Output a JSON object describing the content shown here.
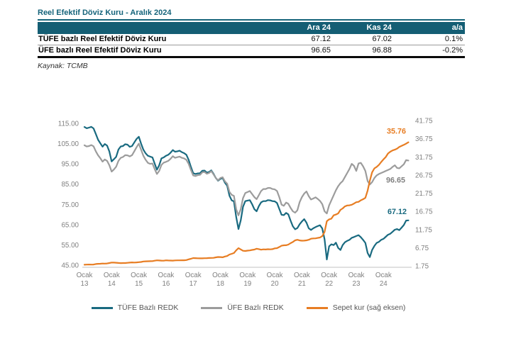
{
  "report": {
    "title": "Reel Efektif Döviz Kuru - Aralık 2024",
    "source": "Kaynak: TCMB"
  },
  "table": {
    "headers": [
      "",
      "Ara 24",
      "Kas 24",
      "a/a"
    ],
    "rows": [
      {
        "label": "TÜFE bazlı Reel Efektif Döviz Kuru",
        "ara24": "67.12",
        "kas24": "67.02",
        "aa": "0.1%"
      },
      {
        "label": "ÜFE bazlı Reel Efektif Döviz Kuru",
        "ara24": "96.65",
        "kas24": "96.88",
        "aa": "-0.2%"
      }
    ]
  },
  "colors": {
    "teal": "#196a80",
    "gray": "#9c9c9c",
    "orange": "#e77d23",
    "header_bg": "#145e74",
    "axis_text": "#7f7f7f",
    "axis_line": "#c0c0c0",
    "legend_text": "#555555"
  },
  "chart_data": {
    "type": "line",
    "title": "",
    "xlabel": "",
    "ylabel": "",
    "x_frequency": "monthly",
    "x_start": "Ocak 2013",
    "x_end": "Aralık 2024",
    "x_ticks": [
      {
        "month": "Ocak",
        "year": "13"
      },
      {
        "month": "Ocak",
        "year": "14"
      },
      {
        "month": "Ocak",
        "year": "15"
      },
      {
        "month": "Ocak",
        "year": "16"
      },
      {
        "month": "Ocak",
        "year": "17"
      },
      {
        "month": "Ocak",
        "year": "18"
      },
      {
        "month": "Ocak",
        "year": "19"
      },
      {
        "month": "Ocak",
        "year": "20"
      },
      {
        "month": "Ocak",
        "year": "21"
      },
      {
        "month": "Ocak",
        "year": "22"
      },
      {
        "month": "Ocak",
        "year": "23"
      },
      {
        "month": "Ocak",
        "year": "24"
      }
    ],
    "left_axis": {
      "min": 45,
      "max": 115,
      "ticks": [
        "115.00",
        "105.00",
        "95.00",
        "85.00",
        "75.00",
        "65.00",
        "55.00",
        "45.00"
      ]
    },
    "right_axis": {
      "min": 1.75,
      "max": 41.75,
      "ticks": [
        "41.75",
        "36.75",
        "31.75",
        "26.75",
        "21.75",
        "16.75",
        "11.75",
        "6.75",
        "1.75"
      ]
    },
    "grid": false,
    "legend_position": "bottom",
    "legend": [
      {
        "label": "TÜFE Bazlı REDK",
        "color": "#196a80"
      },
      {
        "label": "ÜFE Bazlı REDK",
        "color": "#9c9c9c"
      },
      {
        "label": "Sepet kur (sağ eksen)",
        "color": "#e77d23"
      }
    ],
    "end_labels": [
      {
        "series": "tufe",
        "text": "67.12",
        "color": "#196a80"
      },
      {
        "series": "ufe",
        "text": "96.65",
        "color": "#808080"
      },
      {
        "series": "sepet",
        "text": "35.76",
        "color": "#e77d23"
      }
    ],
    "series": [
      {
        "name": "TÜFE Bazlı REDK",
        "id": "tufe",
        "axis": "left",
        "color": "#196a80",
        "values": [
          113.2,
          112.6,
          112.9,
          113.3,
          112.5,
          109.8,
          106.9,
          105.2,
          103.5,
          104.8,
          104.0,
          101.1,
          96.2,
          97.3,
          98.5,
          102.1,
          103.6,
          103.8,
          104.7,
          104.5,
          103.4,
          103.8,
          105.6,
          107.3,
          108.4,
          105.0,
          102.0,
          100.2,
          99.0,
          98.6,
          98.2,
          95.2,
          92.1,
          94.3,
          97.7,
          98.2,
          99.0,
          99.5,
          100.5,
          101.8,
          101.0,
          101.2,
          101.5,
          100.8,
          100.3,
          99.5,
          97.0,
          93.5,
          90.4,
          90.0,
          90.3,
          90.4,
          91.6,
          91.7,
          90.7,
          91.0,
          91.8,
          90.1,
          88.0,
          86.7,
          87.6,
          88.0,
          85.7,
          84.2,
          79.3,
          77.0,
          76.5,
          68.8,
          62.8,
          67.1,
          73.8,
          76.6,
          76.9,
          77.1,
          75.1,
          72.6,
          71.6,
          74.2,
          76.0,
          76.6,
          76.6,
          77.1,
          77.0,
          76.6,
          76.5,
          75.7,
          72.8,
          69.9,
          69.7,
          70.8,
          70.1,
          67.0,
          64.2,
          62.7,
          63.3,
          65.2,
          66.6,
          67.7,
          66.0,
          63.2,
          62.4,
          63.2,
          63.8,
          64.3,
          64.7,
          63.1,
          57.8,
          47.8,
          54.3,
          55.3,
          54.9,
          56.1,
          53.5,
          52.5,
          54.9,
          56.3,
          57.0,
          57.5,
          58.5,
          58.9,
          59.4,
          59.8,
          58.8,
          57.5,
          56.0,
          51.0,
          49.0,
          52.5,
          54.5,
          56.0,
          56.5,
          57.5,
          58.0,
          59.0,
          60.0,
          60.5,
          61.5,
          62.5,
          62.8,
          62.3,
          63.5,
          64.8,
          67.02,
          67.12
        ]
      },
      {
        "name": "ÜFE Bazlı REDK",
        "id": "ufe",
        "axis": "left",
        "color": "#9c9c9c",
        "values": [
          104.2,
          103.6,
          103.8,
          104.3,
          103.7,
          101.2,
          99.2,
          97.8,
          96.1,
          97.2,
          96.5,
          94.3,
          91.2,
          92.2,
          93.6,
          96.5,
          98.0,
          98.4,
          99.3,
          99.2,
          98.7,
          99.3,
          101.2,
          103.2,
          105.0,
          102.0,
          99.0,
          97.0,
          95.5,
          95.0,
          95.2,
          92.5,
          90.0,
          91.5,
          94.5,
          95.6,
          96.0,
          96.5,
          97.5,
          98.8,
          98.0,
          98.3,
          98.6,
          98.0,
          97.7,
          97.0,
          95.0,
          92.0,
          89.3,
          89.0,
          89.4,
          89.6,
          90.8,
          91.0,
          90.1,
          90.5,
          91.4,
          89.8,
          88.0,
          86.9,
          88.0,
          88.4,
          86.4,
          85.2,
          81.2,
          79.7,
          79.2,
          72.6,
          69.6,
          72.6,
          78.1,
          80.6,
          81.1,
          81.6,
          80.1,
          78.6,
          77.6,
          79.6,
          81.6,
          82.6,
          82.6,
          83.1,
          83.1,
          82.6,
          82.4,
          81.6,
          78.6,
          74.9,
          74.3,
          75.9,
          75.3,
          73.3,
          71.6,
          70.9,
          72.1,
          76.1,
          78.6,
          80.3,
          81.4,
          79.1,
          77.4,
          77.9,
          78.5,
          77.7,
          76.7,
          75.1,
          71.6,
          70.5,
          74.5,
          77.0,
          79.5,
          82.0,
          84.0,
          85.5,
          86.5,
          88.5,
          90.5,
          92.5,
          95.0,
          94.0,
          91.5,
          95.2,
          95.5,
          93.8,
          91.5,
          86.5,
          84.8,
          86.0,
          88.0,
          89.3,
          90.0,
          90.5,
          91.0,
          91.5,
          92.0,
          92.5,
          93.5,
          94.3,
          93.0,
          92.8,
          93.8,
          94.8,
          96.88,
          96.65
        ]
      },
      {
        "name": "Sepet kur (sağ eksen)",
        "id": "sepet",
        "axis": "right",
        "color": "#e77d23",
        "values": [
          2.07,
          2.1,
          2.12,
          2.1,
          2.13,
          2.25,
          2.31,
          2.34,
          2.4,
          2.38,
          2.41,
          2.53,
          2.67,
          2.64,
          2.6,
          2.55,
          2.52,
          2.53,
          2.54,
          2.58,
          2.64,
          2.7,
          2.66,
          2.71,
          2.76,
          2.82,
          2.96,
          2.99,
          3.02,
          3.03,
          3.06,
          3.18,
          3.28,
          3.23,
          3.19,
          3.17,
          3.28,
          3.24,
          3.22,
          3.2,
          3.26,
          3.28,
          3.27,
          3.3,
          3.3,
          3.35,
          3.54,
          3.7,
          3.89,
          3.87,
          3.84,
          3.82,
          3.81,
          3.85,
          3.88,
          3.91,
          3.93,
          3.95,
          4.1,
          4.18,
          4.17,
          4.12,
          4.33,
          4.47,
          4.88,
          5.07,
          5.29,
          6.02,
          6.63,
          6.28,
          5.91,
          5.85,
          5.95,
          6.01,
          6.14,
          6.24,
          6.48,
          6.35,
          6.19,
          6.3,
          6.26,
          6.33,
          6.3,
          6.35,
          6.56,
          6.63,
          6.95,
          7.29,
          7.41,
          7.42,
          7.61,
          7.99,
          8.32,
          8.78,
          8.93,
          8.76,
          8.68,
          8.7,
          8.78,
          8.94,
          9.23,
          9.31,
          9.32,
          9.44,
          9.56,
          9.97,
          11.08,
          14.05,
          14.55,
          14.75,
          15.67,
          15.88,
          16.18,
          17.16,
          17.56,
          18.12,
          18.37,
          18.42,
          18.56,
          18.91,
          19.28,
          19.36,
          19.79,
          20.1,
          20.46,
          22.47,
          25.2,
          27.48,
          28.58,
          28.98,
          29.53,
          30.33,
          31.06,
          31.71,
          32.68,
          33.16,
          33.52,
          33.74,
          34.02,
          34.47,
          34.77,
          35.06,
          35.38,
          35.76
        ]
      }
    ]
  }
}
